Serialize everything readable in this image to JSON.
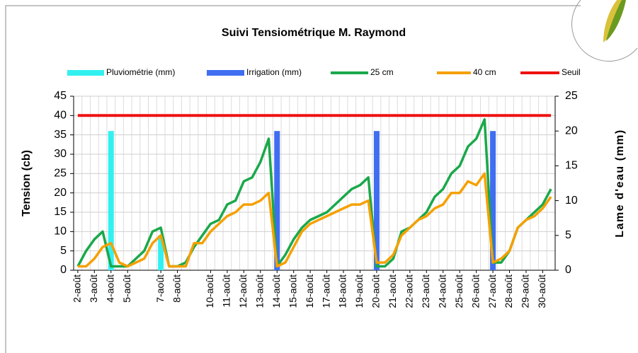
{
  "chart_data": {
    "type": "combo",
    "title": "Suivi Tensiométrique M. Raymond",
    "y_label": "Tension (cb)",
    "y2_label": "Lame d'eau (mm)",
    "categories": [
      "2-août",
      null,
      "3-août",
      null,
      "4-août",
      null,
      "5-août",
      null,
      null,
      null,
      "7-août",
      null,
      "8-août",
      null,
      null,
      null,
      "10-août",
      null,
      "11-août",
      null,
      "12-août",
      null,
      "13-août",
      null,
      "14-août",
      null,
      "15-août",
      null,
      "16-août",
      null,
      "17-août",
      null,
      "18-août",
      null,
      "19-août",
      null,
      "20-août",
      null,
      "21-août",
      null,
      "22-août",
      null,
      "23-août",
      null,
      "24-août",
      null,
      "25-août",
      null,
      "26-août",
      null,
      "27-août",
      null,
      "28-août",
      null,
      "29-août",
      null,
      "30-août",
      null
    ],
    "series": [
      {
        "name": "Pluviométrie (mm)",
        "type": "bar",
        "axis": "y2",
        "color": "#33f0f0",
        "values": [
          null,
          null,
          null,
          null,
          20,
          null,
          null,
          null,
          null,
          null,
          5,
          null,
          null,
          null,
          null,
          null,
          null,
          null,
          null,
          null,
          null,
          null,
          null,
          null,
          null,
          null,
          null,
          null,
          null,
          null,
          null,
          null,
          null,
          null,
          null,
          null,
          null,
          null,
          null,
          null,
          null,
          null,
          null,
          null,
          null,
          null,
          null,
          null,
          null,
          null,
          null,
          null,
          null,
          null,
          null,
          null,
          null,
          null
        ]
      },
      {
        "name": "Irrigation (mm)",
        "type": "bar",
        "axis": "y2",
        "color": "#3f6ef0",
        "values": [
          null,
          null,
          null,
          null,
          null,
          null,
          null,
          null,
          null,
          null,
          null,
          null,
          null,
          null,
          null,
          null,
          null,
          null,
          null,
          null,
          null,
          null,
          null,
          null,
          20,
          null,
          null,
          null,
          null,
          null,
          null,
          null,
          null,
          null,
          null,
          null,
          20,
          null,
          null,
          null,
          null,
          null,
          null,
          null,
          null,
          null,
          null,
          null,
          null,
          null,
          20,
          null,
          null,
          null,
          null,
          null,
          null,
          null
        ]
      },
      {
        "name": "25 cm",
        "type": "line",
        "color": "#1aa84a",
        "values": [
          1,
          5,
          8,
          10,
          1,
          1,
          1,
          3,
          5,
          10,
          11,
          1,
          1,
          2,
          6,
          9,
          12,
          13,
          17,
          18,
          23,
          24,
          28,
          34,
          1,
          4,
          8,
          11,
          13,
          14,
          15,
          17,
          19,
          21,
          22,
          24,
          1,
          1,
          3,
          10,
          11,
          13,
          15,
          19,
          21,
          25,
          27,
          32,
          34,
          39,
          2,
          2,
          5,
          11,
          13,
          15,
          17,
          21
        ]
      },
      {
        "name": "40 cm",
        "type": "line",
        "color": "#f5a000",
        "values": [
          1,
          1,
          3,
          6,
          7,
          2,
          1,
          2,
          3,
          7,
          9,
          1,
          1,
          1,
          7,
          7,
          10,
          12,
          14,
          15,
          17,
          17,
          18,
          20,
          1,
          2,
          6,
          10,
          12,
          13,
          14,
          15,
          16,
          17,
          17,
          18,
          2,
          2,
          4,
          9,
          11,
          13,
          14,
          16,
          17,
          20,
          20,
          23,
          22,
          25,
          2,
          3,
          5,
          11,
          13,
          14,
          16,
          19
        ]
      },
      {
        "name": "Seuil",
        "type": "line",
        "color": "#ee1111",
        "values": [
          40,
          40,
          40,
          40,
          40,
          40,
          40,
          40,
          40,
          40,
          40,
          40,
          40,
          40,
          40,
          40,
          40,
          40,
          40,
          40,
          40,
          40,
          40,
          40,
          40,
          40,
          40,
          40,
          40,
          40,
          40,
          40,
          40,
          40,
          40,
          40,
          40,
          40,
          40,
          40,
          40,
          40,
          40,
          40,
          40,
          40,
          40,
          40,
          40,
          40,
          40,
          40,
          40,
          40,
          40,
          40,
          40,
          40
        ]
      }
    ],
    "ylim": [
      0,
      45
    ],
    "yticks": [
      0,
      5,
      10,
      15,
      20,
      25,
      30,
      35,
      40,
      45
    ],
    "y2lim": [
      0,
      25
    ],
    "y2ticks": [
      0,
      5,
      10,
      15,
      20,
      25
    ],
    "grid": true,
    "legend": "top"
  }
}
